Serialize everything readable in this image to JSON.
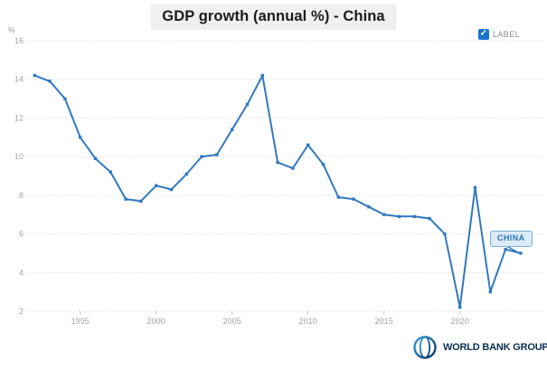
{
  "header": {
    "title": "GDP growth (annual %) - China"
  },
  "legend": {
    "checkbox_label": "LABEL",
    "checked": true,
    "checkbox_color": "#1a75cf",
    "checkmark": "✓"
  },
  "series_callout": {
    "label": "CHINA"
  },
  "footer": {
    "brand": "WORLD BANK GROUP"
  },
  "colors": {
    "line": "#3279bd",
    "grid": "#d9d9d9",
    "axis_text": "#a3a3a3",
    "title_bg": "#f0f0f1",
    "callout_bg": "#dcebf7",
    "callout_border": "#7fafd7"
  },
  "chart_data": {
    "type": "line",
    "title": "GDP growth (annual %) - China",
    "unit": "%",
    "xlabel": "",
    "ylabel": "%",
    "xlim": [
      1992,
      2024
    ],
    "ylim": [
      2,
      16
    ],
    "x_ticks": [
      1995,
      2000,
      2005,
      2010,
      2015,
      2020
    ],
    "y_ticks": [
      16,
      14,
      12,
      10,
      8,
      6,
      4,
      2
    ],
    "grid": "horizontal-dashed",
    "legend_position": "top-right",
    "series": [
      {
        "name": "CHINA",
        "color": "#3279bd",
        "x": [
          1992,
          1993,
          1994,
          1995,
          1996,
          1997,
          1998,
          1999,
          2000,
          2001,
          2002,
          2003,
          2004,
          2005,
          2006,
          2007,
          2008,
          2009,
          2010,
          2011,
          2012,
          2013,
          2014,
          2015,
          2016,
          2017,
          2018,
          2019,
          2020,
          2021,
          2022,
          2023,
          2024
        ],
        "values": [
          14.2,
          13.9,
          13.0,
          11.0,
          9.9,
          9.2,
          7.8,
          7.7,
          8.5,
          8.3,
          9.1,
          10.0,
          10.1,
          11.4,
          12.7,
          14.2,
          9.7,
          9.4,
          10.6,
          9.6,
          7.9,
          7.8,
          7.4,
          7.0,
          6.9,
          6.9,
          6.8,
          6.0,
          2.2,
          8.4,
          3.0,
          5.2,
          5.0
        ]
      }
    ]
  }
}
